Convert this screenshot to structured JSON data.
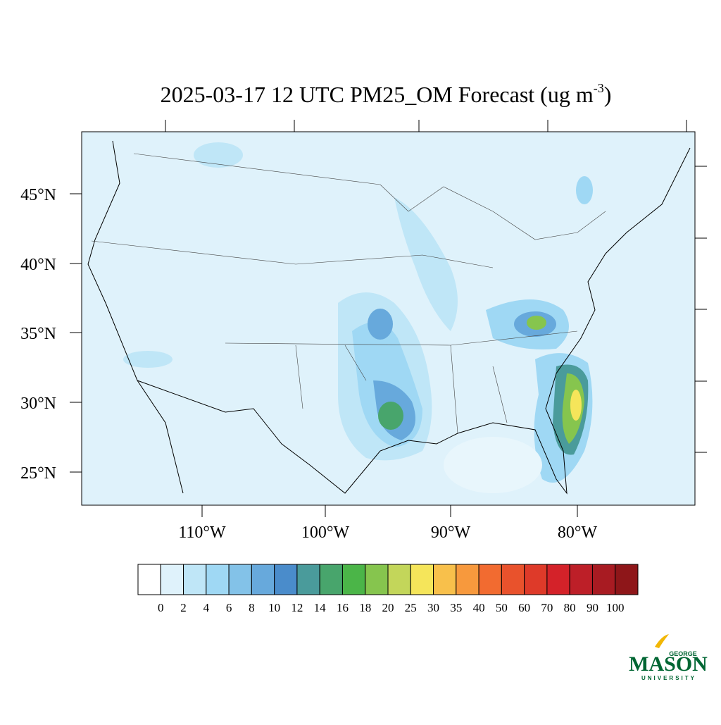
{
  "title": {
    "text": "2025-03-17 12 UTC PM25_OM Forecast (ug m",
    "superscript": "-3",
    "close": ")"
  },
  "lat_labels": [
    "45°N",
    "40°N",
    "35°N",
    "30°N",
    "25°N"
  ],
  "lon_labels": [
    "110°W",
    "100°W",
    "90°W",
    "80°W"
  ],
  "colorbar": {
    "levels": [
      0,
      2,
      4,
      6,
      8,
      10,
      12,
      14,
      16,
      18,
      20,
      25,
      30,
      35,
      40,
      50,
      60,
      70,
      80,
      90,
      100
    ],
    "colors": [
      "#ffffff",
      "#dff2fb",
      "#bfe6f7",
      "#9fd8f4",
      "#83c2e8",
      "#67a9dc",
      "#4a8ccb",
      "#4a9b9b",
      "#48a56c",
      "#4bb548",
      "#86c54e",
      "#c3d65a",
      "#f5e55a",
      "#f8c04b",
      "#f7993d",
      "#f26b30",
      "#e9522c",
      "#de3a29",
      "#d42229",
      "#bd1f28",
      "#a81b22",
      "#8e1619"
    ]
  },
  "logo": {
    "top": "GEORGE",
    "main": "MASON",
    "bottom": "UNIVERSITY"
  }
}
